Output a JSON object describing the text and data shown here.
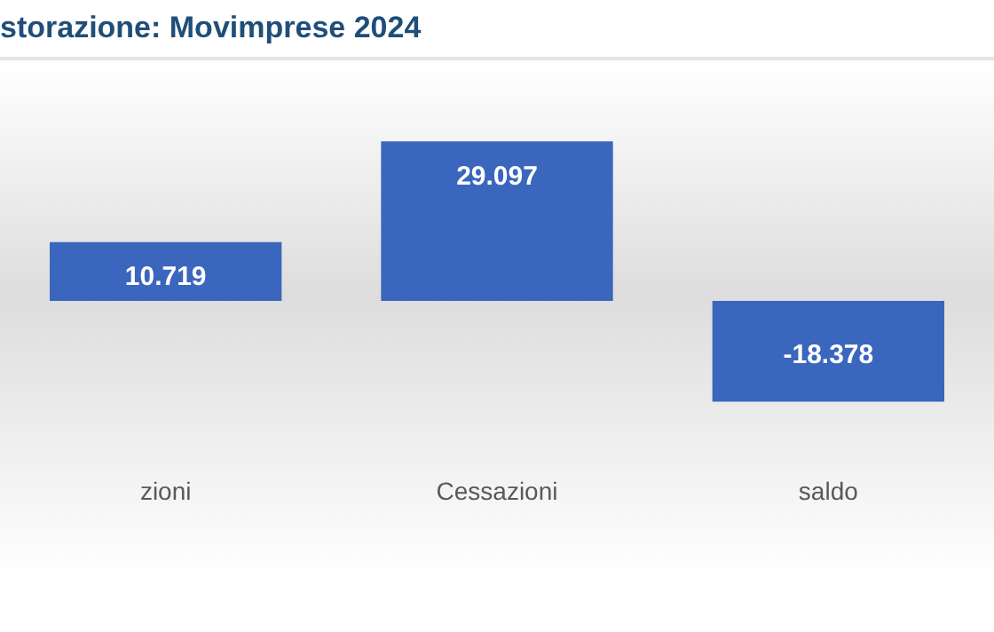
{
  "chart_data": {
    "type": "bar",
    "title": "storazione: Movimprese 2024",
    "categories": [
      "zioni",
      "Cessazioni",
      "saldo"
    ],
    "values": [
      10.719,
      29.097,
      -18.378
    ],
    "data_labels": true,
    "color": "#3a66bd",
    "grid": false,
    "legend": false
  }
}
